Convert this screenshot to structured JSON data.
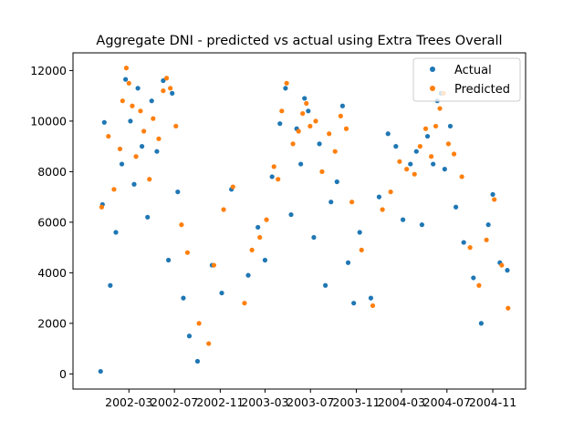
{
  "chart_data": {
    "type": "scatter",
    "title": "Aggregate DNI - predicted vs actual using Extra Trees Overall",
    "xlabel": "",
    "ylabel": "",
    "x_range": [
      "2001-10-02",
      "2005-01-28"
    ],
    "ylim": [
      -600,
      12700
    ],
    "x_ticks": [
      {
        "date": "2002-03-01",
        "label": "2002-03"
      },
      {
        "date": "2002-07-01",
        "label": "2002-07"
      },
      {
        "date": "2002-11-01",
        "label": "2002-11"
      },
      {
        "date": "2003-03-01",
        "label": "2003-03"
      },
      {
        "date": "2003-07-01",
        "label": "2003-07"
      },
      {
        "date": "2003-11-01",
        "label": "2003-11"
      },
      {
        "date": "2004-03-01",
        "label": "2004-03"
      },
      {
        "date": "2004-07-01",
        "label": "2004-07"
      },
      {
        "date": "2004-11-01",
        "label": "2004-11"
      }
    ],
    "y_ticks": [
      0,
      2000,
      4000,
      6000,
      8000,
      10000,
      12000
    ],
    "y_tick_labels": [
      "0",
      "2000",
      "4000",
      "6000",
      "8000",
      "10000",
      "12000"
    ],
    "grid": false,
    "legend_position": "top-right",
    "series": [
      {
        "name": "Actual",
        "color": "#1f77b4",
        "points": [
          [
            "2001-12-15",
            100
          ],
          [
            "2001-12-20",
            6700
          ],
          [
            "2001-12-25",
            9950
          ],
          [
            "2002-01-10",
            3500
          ],
          [
            "2002-01-25",
            5600
          ],
          [
            "2002-02-10",
            8300
          ],
          [
            "2002-02-20",
            11650
          ],
          [
            "2002-03-05",
            10000
          ],
          [
            "2002-03-15",
            7500
          ],
          [
            "2002-03-25",
            11300
          ],
          [
            "2002-04-05",
            9000
          ],
          [
            "2002-04-20",
            6200
          ],
          [
            "2002-05-01",
            10800
          ],
          [
            "2002-05-15",
            8800
          ],
          [
            "2002-06-01",
            11600
          ],
          [
            "2002-06-15",
            4500
          ],
          [
            "2002-06-25",
            11100
          ],
          [
            "2002-07-10",
            7200
          ],
          [
            "2002-07-25",
            3000
          ],
          [
            "2002-08-10",
            1500
          ],
          [
            "2002-09-01",
            500
          ],
          [
            "2002-10-10",
            4300
          ],
          [
            "2002-11-05",
            3200
          ],
          [
            "2002-12-01",
            7300
          ],
          [
            "2003-01-15",
            3900
          ],
          [
            "2003-02-10",
            5800
          ],
          [
            "2003-03-01",
            4500
          ],
          [
            "2003-03-20",
            7800
          ],
          [
            "2003-04-10",
            9900
          ],
          [
            "2003-04-25",
            11300
          ],
          [
            "2003-05-10",
            6300
          ],
          [
            "2003-05-25",
            9700
          ],
          [
            "2003-06-05",
            8300
          ],
          [
            "2003-06-15",
            10900
          ],
          [
            "2003-06-25",
            10400
          ],
          [
            "2003-07-10",
            5400
          ],
          [
            "2003-07-25",
            9100
          ],
          [
            "2003-08-10",
            3500
          ],
          [
            "2003-08-25",
            6800
          ],
          [
            "2003-09-10",
            7600
          ],
          [
            "2003-09-25",
            10600
          ],
          [
            "2003-10-10",
            4400
          ],
          [
            "2003-10-25",
            2800
          ],
          [
            "2003-11-10",
            5600
          ],
          [
            "2003-12-10",
            3000
          ],
          [
            "2004-01-01",
            7000
          ],
          [
            "2004-01-25",
            9500
          ],
          [
            "2004-02-15",
            9000
          ],
          [
            "2004-03-05",
            6100
          ],
          [
            "2004-03-25",
            8300
          ],
          [
            "2004-04-10",
            8800
          ],
          [
            "2004-04-25",
            5900
          ],
          [
            "2004-05-10",
            9400
          ],
          [
            "2004-05-25",
            8300
          ],
          [
            "2004-06-05",
            10800
          ],
          [
            "2004-06-15",
            11100
          ],
          [
            "2004-06-25",
            8100
          ],
          [
            "2004-07-10",
            9800
          ],
          [
            "2004-07-25",
            6600
          ],
          [
            "2004-08-15",
            5200
          ],
          [
            "2004-09-10",
            3800
          ],
          [
            "2004-10-01",
            2000
          ],
          [
            "2004-10-20",
            5900
          ],
          [
            "2004-11-01",
            7100
          ],
          [
            "2004-11-20",
            4400
          ],
          [
            "2004-12-10",
            4100
          ]
        ]
      },
      {
        "name": "Predicted",
        "color": "#ff7f0e",
        "points": [
          [
            "2001-12-18",
            6600
          ],
          [
            "2002-01-05",
            9400
          ],
          [
            "2002-01-20",
            7300
          ],
          [
            "2002-02-05",
            8900
          ],
          [
            "2002-02-12",
            10800
          ],
          [
            "2002-02-22",
            12100
          ],
          [
            "2002-03-01",
            11500
          ],
          [
            "2002-03-10",
            10600
          ],
          [
            "2002-03-20",
            8600
          ],
          [
            "2002-04-01",
            10400
          ],
          [
            "2002-04-10",
            9600
          ],
          [
            "2002-04-25",
            7700
          ],
          [
            "2002-05-05",
            10100
          ],
          [
            "2002-05-20",
            9300
          ],
          [
            "2002-06-01",
            11200
          ],
          [
            "2002-06-10",
            11700
          ],
          [
            "2002-06-20",
            11300
          ],
          [
            "2002-07-05",
            9800
          ],
          [
            "2002-07-20",
            5900
          ],
          [
            "2002-08-05",
            4800
          ],
          [
            "2002-09-05",
            2000
          ],
          [
            "2002-10-01",
            1200
          ],
          [
            "2002-10-15",
            4300
          ],
          [
            "2002-11-10",
            6500
          ],
          [
            "2002-12-05",
            7400
          ],
          [
            "2003-01-05",
            2800
          ],
          [
            "2003-01-25",
            4900
          ],
          [
            "2003-02-15",
            5400
          ],
          [
            "2003-03-05",
            6100
          ],
          [
            "2003-03-25",
            8200
          ],
          [
            "2003-04-05",
            7700
          ],
          [
            "2003-04-15",
            10400
          ],
          [
            "2003-04-28",
            11500
          ],
          [
            "2003-05-15",
            9100
          ],
          [
            "2003-05-30",
            9600
          ],
          [
            "2003-06-10",
            10300
          ],
          [
            "2003-06-20",
            10700
          ],
          [
            "2003-06-30",
            9800
          ],
          [
            "2003-07-15",
            10000
          ],
          [
            "2003-08-01",
            8000
          ],
          [
            "2003-08-20",
            9500
          ],
          [
            "2003-09-05",
            8800
          ],
          [
            "2003-09-20",
            10200
          ],
          [
            "2003-10-05",
            9700
          ],
          [
            "2003-10-20",
            6800
          ],
          [
            "2003-11-15",
            4900
          ],
          [
            "2003-12-15",
            2700
          ],
          [
            "2004-01-10",
            6500
          ],
          [
            "2004-02-01",
            7200
          ],
          [
            "2004-02-25",
            8400
          ],
          [
            "2004-03-15",
            8100
          ],
          [
            "2004-04-05",
            7900
          ],
          [
            "2004-04-20",
            9000
          ],
          [
            "2004-05-05",
            9700
          ],
          [
            "2004-05-20",
            8600
          ],
          [
            "2004-06-01",
            9800
          ],
          [
            "2004-06-12",
            10500
          ],
          [
            "2004-06-22",
            11100
          ],
          [
            "2004-07-05",
            9100
          ],
          [
            "2004-07-20",
            8700
          ],
          [
            "2004-08-10",
            7800
          ],
          [
            "2004-09-01",
            5000
          ],
          [
            "2004-09-25",
            3500
          ],
          [
            "2004-10-15",
            5300
          ],
          [
            "2004-11-05",
            6900
          ],
          [
            "2004-11-25",
            4300
          ],
          [
            "2004-12-12",
            2600
          ]
        ]
      }
    ],
    "dense_cloud_note_ranges": []
  }
}
